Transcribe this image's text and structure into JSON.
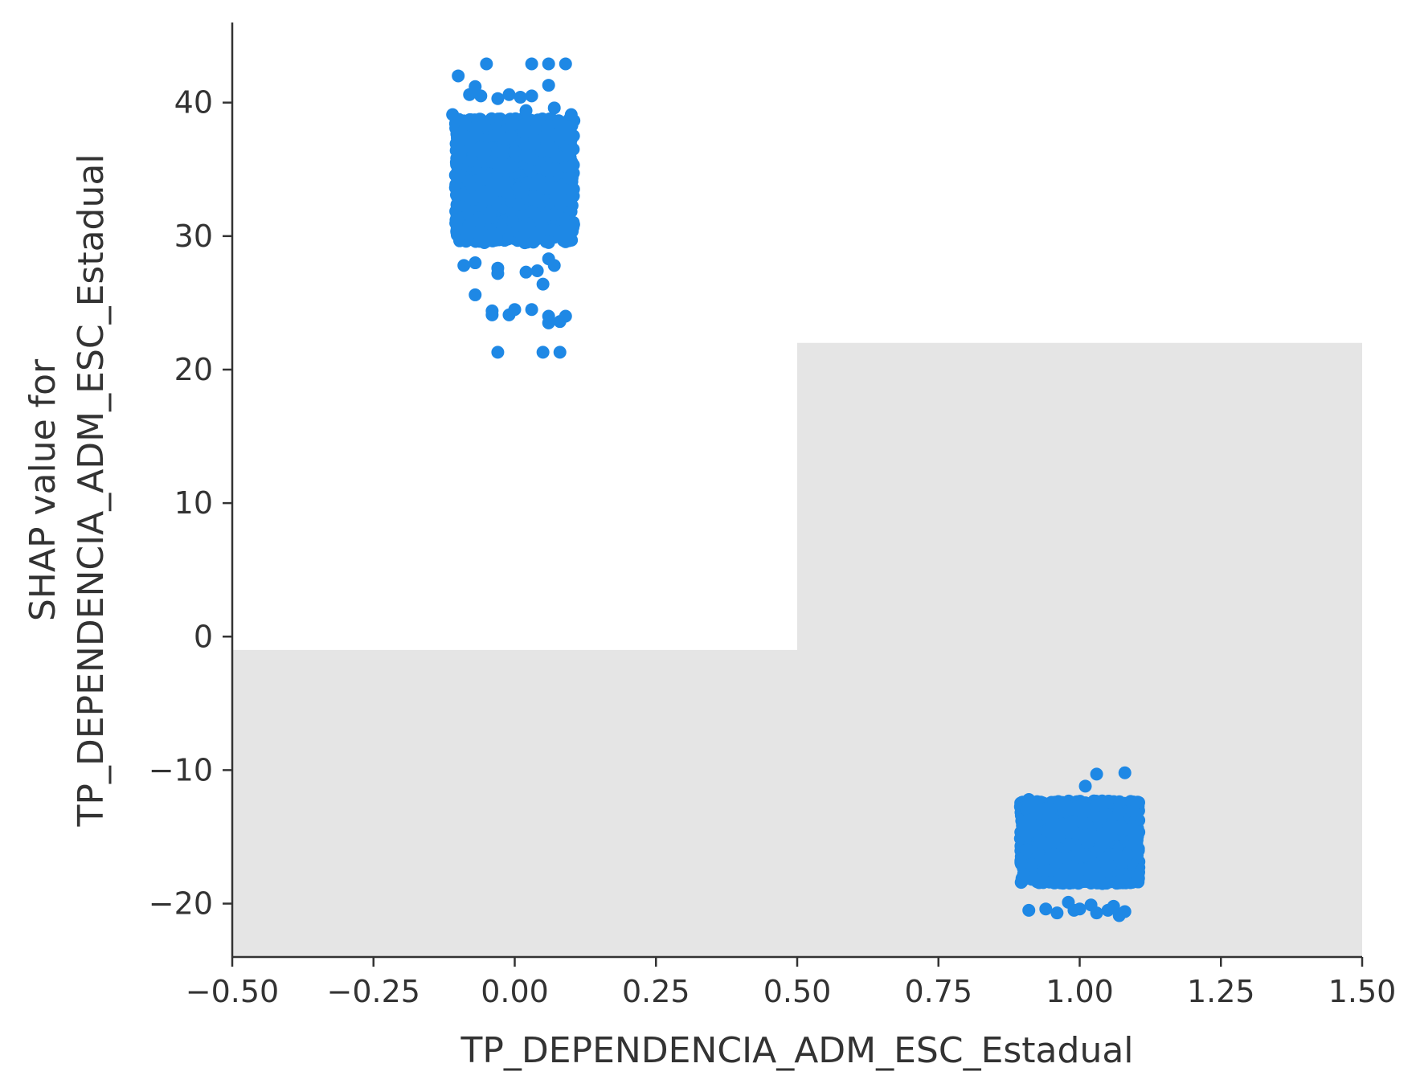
{
  "chart_data": {
    "type": "scatter",
    "title": "",
    "xlabel": "TP_DEPENDENCIA_ADM_ESC_Estadual",
    "ylabel_lines": [
      "SHAP value for",
      "TP_DEPENDENCIA_ADM_ESC_Estadual"
    ],
    "xlim": [
      -0.5,
      1.5
    ],
    "ylim": [
      -24,
      46
    ],
    "x_ticks": [
      -0.5,
      -0.25,
      0.0,
      0.25,
      0.5,
      0.75,
      1.0,
      1.25,
      1.5
    ],
    "x_tick_labels": [
      "−0.50",
      "−0.25",
      "0.00",
      "0.25",
      "0.50",
      "0.75",
      "1.00",
      "1.25",
      "1.50"
    ],
    "y_ticks": [
      -20,
      -10,
      0,
      10,
      20,
      30,
      40
    ],
    "y_tick_labels": [
      "−20",
      "−10",
      "0",
      "10",
      "20",
      "30",
      "40"
    ],
    "grid": false,
    "point_color": "#1e88e5",
    "histogram_color": "#e5e5e5",
    "histogram": [
      {
        "x_from": -0.5,
        "x_to": 0.5,
        "height": 23.0
      },
      {
        "x_from": 0.5,
        "x_to": 1.5,
        "height": 46.0
      }
    ],
    "clusters": [
      {
        "x_value": 0,
        "dense_y_range": [
          29.5,
          38.8
        ],
        "outliers": [
          [
            -0.05,
            42.9
          ],
          [
            0.03,
            42.9
          ],
          [
            0.06,
            42.9
          ],
          [
            0.09,
            42.9
          ],
          [
            -0.1,
            42.0
          ],
          [
            -0.07,
            41.2
          ],
          [
            0.06,
            41.3
          ],
          [
            -0.08,
            40.6
          ],
          [
            -0.06,
            40.5
          ],
          [
            -0.03,
            40.3
          ],
          [
            -0.01,
            40.6
          ],
          [
            0.01,
            40.4
          ],
          [
            0.03,
            40.5
          ],
          [
            0.02,
            39.4
          ],
          [
            0.07,
            39.6
          ],
          [
            0.1,
            39.1
          ],
          [
            -0.11,
            39.1
          ],
          [
            0.06,
            28.3
          ],
          [
            0.07,
            27.8
          ],
          [
            -0.09,
            27.8
          ],
          [
            -0.07,
            28.0
          ],
          [
            -0.03,
            27.6
          ],
          [
            -0.03,
            27.2
          ],
          [
            0.02,
            27.3
          ],
          [
            0.04,
            27.4
          ],
          [
            0.05,
            26.4
          ],
          [
            -0.07,
            25.6
          ],
          [
            -0.04,
            24.4
          ],
          [
            -0.04,
            24.1
          ],
          [
            -0.01,
            24.1
          ],
          [
            0.0,
            24.5
          ],
          [
            0.03,
            24.5
          ],
          [
            0.06,
            24.0
          ],
          [
            0.09,
            24.0
          ],
          [
            0.06,
            23.5
          ],
          [
            0.08,
            23.6
          ],
          [
            -0.03,
            21.3
          ],
          [
            0.05,
            21.3
          ],
          [
            0.08,
            21.3
          ]
        ]
      },
      {
        "x_value": 1,
        "dense_y_range": [
          -18.5,
          -12.3
        ],
        "outliers": [
          [
            1.03,
            -10.3
          ],
          [
            1.08,
            -10.2
          ],
          [
            1.01,
            -11.2
          ],
          [
            0.91,
            -12.2
          ],
          [
            0.91,
            -20.5
          ],
          [
            0.94,
            -20.4
          ],
          [
            0.96,
            -20.7
          ],
          [
            0.99,
            -20.5
          ],
          [
            1.0,
            -20.4
          ],
          [
            1.03,
            -20.7
          ],
          [
            1.05,
            -20.5
          ],
          [
            1.07,
            -20.9
          ],
          [
            1.08,
            -20.6
          ],
          [
            0.98,
            -19.9
          ],
          [
            1.02,
            -20.1
          ],
          [
            1.06,
            -20.2
          ]
        ]
      }
    ]
  }
}
